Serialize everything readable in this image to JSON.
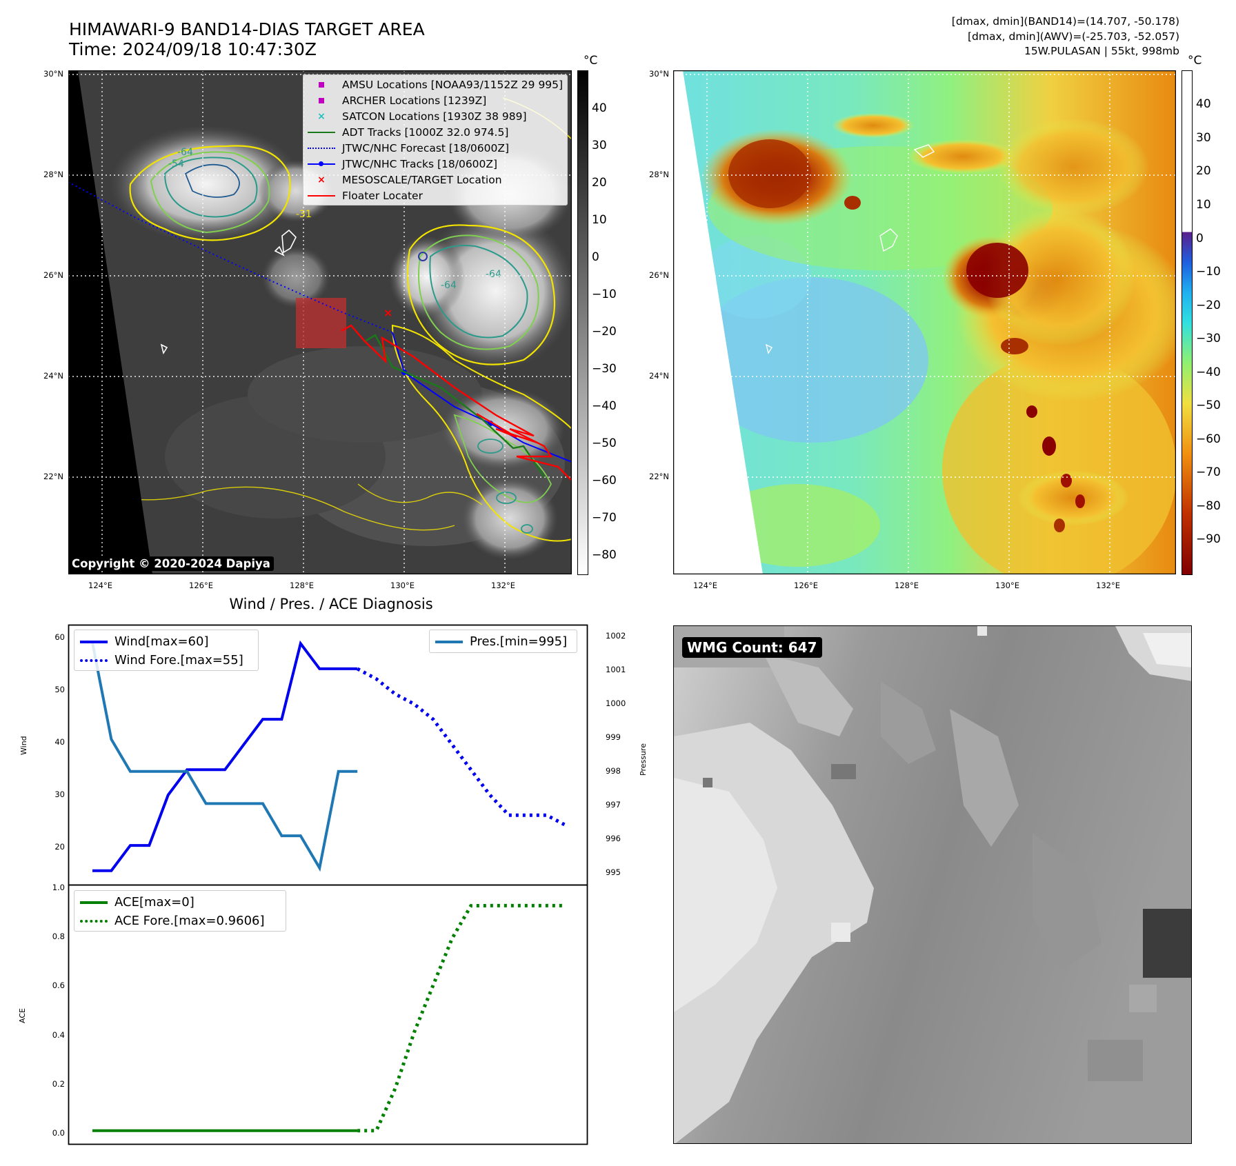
{
  "header": {
    "title_line1": "HIMAWARI-9 BAND14-DIAS TARGET AREA",
    "title_line2": "Time: 2024/09/18 10:47:30Z",
    "info_line1": "[dmax, dmin](BAND14)=(14.707, -50.178)",
    "info_line2": "[dmax, dmin](AWV)=(-25.703, -52.057)",
    "info_line3": "15W.PULASAN | 55kt, 998mb"
  },
  "map_axes": {
    "lat_ticks": [
      "30°N",
      "28°N",
      "26°N",
      "24°N",
      "22°N"
    ],
    "lon_ticks": [
      "124°E",
      "126°E",
      "128°E",
      "130°E",
      "132°E"
    ]
  },
  "ir_panel": {
    "copyright": "Copyright © 2020-2024 Dapiya",
    "colorbar_unit": "°C",
    "colorbar_ticks": [
      "40",
      "30",
      "20",
      "10",
      "0",
      "−10",
      "−20",
      "−30",
      "−40",
      "−50",
      "−60",
      "−70",
      "−80"
    ],
    "contour_labels": [
      "-31",
      "-54",
      "-64"
    ],
    "legend": [
      {
        "label": "AMSU Locations [NOAA93/1152Z 29 995]",
        "marker": "square",
        "color": "#c000c0"
      },
      {
        "label": "ARCHER Locations [1239Z]",
        "marker": "square",
        "color": "#c000c0"
      },
      {
        "label": "SATCON Locations [1930Z 38 989]",
        "marker": "x",
        "color": "#20c0c0"
      },
      {
        "label": "ADT Tracks [1000Z 32.0 974.5]",
        "marker": "line",
        "color": "#1a7a1a"
      },
      {
        "label": "JTWC/NHC Forecast [18/0600Z]",
        "marker": "dotted",
        "color": "#0000ff"
      },
      {
        "label": "JTWC/NHC Tracks [18/0600Z]",
        "marker": "line-dot",
        "color": "#0000ff"
      },
      {
        "label": "MESOSCALE/TARGET Location",
        "marker": "x",
        "color": "#ff0000"
      },
      {
        "label": "Floater Locater",
        "marker": "line",
        "color": "#ff0000"
      }
    ]
  },
  "wv_panel": {
    "colorbar_unit": "°C",
    "colorbar_ticks": [
      "40",
      "30",
      "20",
      "10",
      "0",
      "−10",
      "−20",
      "−30",
      "−40",
      "−50",
      "−60",
      "−70",
      "−80",
      "−90"
    ]
  },
  "diag_panel": {
    "title": "Wind / Pres. / ACE Diagnosis",
    "ylabel_left": "Wind",
    "ylabel_right": "Pressure",
    "ylabel_ace": "ACE",
    "wind_legend": "Wind[max=60]",
    "wind_fore_legend": "Wind Fore.[max=55]",
    "pres_legend": "Pres.[min=995]",
    "ace_legend": "ACE[max=0]",
    "ace_fore_legend": "ACE Fore.[max=0.9606]",
    "wind_ticks": [
      "60",
      "50",
      "40",
      "30",
      "20"
    ],
    "pres_ticks": [
      "1002",
      "1001",
      "1000",
      "999",
      "998",
      "997",
      "996",
      "995"
    ],
    "ace_ticks": [
      "1.0",
      "0.8",
      "0.6",
      "0.4",
      "0.2",
      "0.0"
    ]
  },
  "wmg_panel": {
    "label": "WMG Count: 647"
  },
  "chart_data": [
    {
      "type": "line",
      "title": "Wind / Pres. / ACE Diagnosis",
      "xlabel": "",
      "ylabel": "Wind",
      "ylim": [
        14,
        61
      ],
      "x": [
        0,
        1,
        2,
        3,
        4,
        5,
        6,
        7,
        8,
        9,
        10,
        11,
        12,
        13,
        14,
        15,
        16,
        17,
        18,
        19,
        20,
        21,
        22,
        23,
        24,
        25
      ],
      "series": [
        {
          "name": "Wind[max=60]",
          "style": "solid",
          "color": "#0000ee",
          "x": [
            0,
            1,
            2,
            3,
            4,
            5,
            6,
            7,
            8,
            9,
            10,
            11,
            12,
            13,
            14
          ],
          "values": [
            15,
            15,
            20,
            20,
            30,
            35,
            35,
            35,
            40,
            45,
            45,
            60,
            55,
            55,
            55
          ]
        },
        {
          "name": "Wind Fore.[max=55]",
          "style": "dotted",
          "color": "#0000ee",
          "x": [
            14,
            15,
            16,
            17,
            18,
            19,
            20,
            21,
            22,
            23,
            24,
            25
          ],
          "values": [
            55,
            53,
            50,
            48,
            45,
            40,
            35,
            30,
            26,
            26,
            26,
            24
          ]
        }
      ]
    },
    {
      "type": "line",
      "ylabel": "Pressure",
      "ylim": [
        994.8,
        1002.2
      ],
      "series": [
        {
          "name": "Pres.[min=995]",
          "style": "solid",
          "color": "#1f77b4",
          "x": [
            0,
            1,
            2,
            3,
            4,
            5,
            6,
            7,
            8,
            9,
            10,
            11,
            12,
            13,
            14
          ],
          "values": [
            1002,
            999,
            998,
            998,
            998,
            998,
            997,
            997,
            997,
            997,
            996,
            996,
            995,
            998,
            998
          ]
        }
      ]
    },
    {
      "type": "line",
      "ylabel": "ACE",
      "ylim": [
        -0.03,
        1.0
      ],
      "series": [
        {
          "name": "ACE[max=0]",
          "style": "solid",
          "color": "#008000",
          "x": [
            0,
            1,
            2,
            3,
            4,
            5,
            6,
            7,
            8,
            9,
            10,
            11,
            12,
            13,
            14
          ],
          "values": [
            0,
            0,
            0,
            0,
            0,
            0,
            0,
            0,
            0,
            0,
            0,
            0,
            0,
            0,
            0
          ]
        },
        {
          "name": "ACE Fore.[max=0.9606]",
          "style": "dotted",
          "color": "#008000",
          "x": [
            14,
            15,
            16,
            17,
            18,
            19,
            20,
            21,
            22,
            23,
            24,
            25
          ],
          "values": [
            0,
            0,
            0.18,
            0.42,
            0.62,
            0.82,
            0.96,
            0.9606,
            0.9606,
            0.9606,
            0.9606,
            0.9606
          ]
        }
      ]
    }
  ]
}
